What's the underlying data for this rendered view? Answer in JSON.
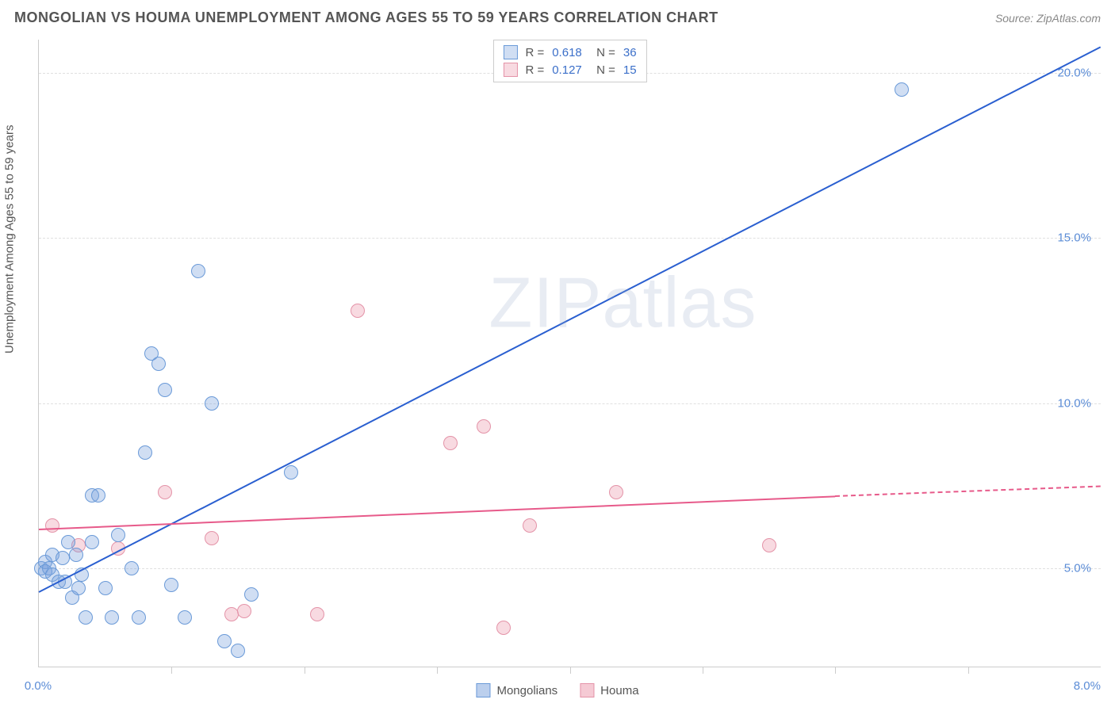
{
  "header": {
    "title": "MONGOLIAN VS HOUMA UNEMPLOYMENT AMONG AGES 55 TO 59 YEARS CORRELATION CHART",
    "source": "Source: ZipAtlas.com"
  },
  "watermark": "ZIPatlas",
  "chart": {
    "type": "scatter",
    "ylabel": "Unemployment Among Ages 55 to 59 years",
    "xlim": [
      0,
      8
    ],
    "ylim": [
      2,
      21
    ],
    "yticks": [
      {
        "v": 5,
        "label": "5.0%"
      },
      {
        "v": 10,
        "label": "10.0%"
      },
      {
        "v": 15,
        "label": "15.0%"
      },
      {
        "v": 20,
        "label": "20.0%"
      }
    ],
    "xticks_major": [
      0,
      1,
      2,
      3,
      4,
      5,
      6,
      7
    ],
    "xtick_labels": [
      {
        "v": 0,
        "label": "0.0%"
      },
      {
        "v": 8,
        "label": "8.0%"
      }
    ],
    "background_color": "#ffffff",
    "grid_color": "#e0e0e0",
    "series": {
      "mongolians": {
        "label": "Mongolians",
        "fill": "rgba(120,160,220,0.35)",
        "stroke": "#6a9ad8",
        "trend_color": "#2a5fd0",
        "marker_radius": 9,
        "r": "0.618",
        "n": "36",
        "trend": {
          "x1": 0,
          "y1": 4.3,
          "x2": 8,
          "y2": 20.8,
          "dash_from_x": 8
        },
        "points": [
          [
            0.02,
            5.0
          ],
          [
            0.05,
            5.2
          ],
          [
            0.05,
            4.9
          ],
          [
            0.08,
            5.0
          ],
          [
            0.1,
            4.8
          ],
          [
            0.1,
            5.4
          ],
          [
            0.15,
            4.6
          ],
          [
            0.18,
            5.3
          ],
          [
            0.2,
            4.6
          ],
          [
            0.22,
            5.8
          ],
          [
            0.25,
            4.1
          ],
          [
            0.28,
            5.4
          ],
          [
            0.3,
            4.4
          ],
          [
            0.32,
            4.8
          ],
          [
            0.35,
            3.5
          ],
          [
            0.4,
            7.2
          ],
          [
            0.4,
            5.8
          ],
          [
            0.45,
            7.2
          ],
          [
            0.5,
            4.4
          ],
          [
            0.55,
            3.5
          ],
          [
            0.6,
            6.0
          ],
          [
            0.7,
            5.0
          ],
          [
            0.75,
            3.5
          ],
          [
            0.8,
            8.5
          ],
          [
            0.85,
            11.5
          ],
          [
            0.9,
            11.2
          ],
          [
            0.95,
            10.4
          ],
          [
            1.0,
            4.5
          ],
          [
            1.1,
            3.5
          ],
          [
            1.2,
            14.0
          ],
          [
            1.3,
            10.0
          ],
          [
            1.4,
            2.8
          ],
          [
            1.5,
            2.5
          ],
          [
            1.6,
            4.2
          ],
          [
            1.9,
            7.9
          ],
          [
            6.5,
            19.5
          ]
        ]
      },
      "houma": {
        "label": "Houma",
        "fill": "rgba(235,150,170,0.35)",
        "stroke": "#e493a8",
        "trend_color": "#e75a8a",
        "marker_radius": 9,
        "r": "0.127",
        "n": "15",
        "trend": {
          "x1": 0,
          "y1": 6.2,
          "x2": 6.0,
          "y2": 7.2,
          "dash_to_x": 8,
          "dash_to_y": 7.5
        },
        "points": [
          [
            0.1,
            6.3
          ],
          [
            0.3,
            5.7
          ],
          [
            0.6,
            5.6
          ],
          [
            0.95,
            7.3
          ],
          [
            1.3,
            5.9
          ],
          [
            1.45,
            3.6
          ],
          [
            1.55,
            3.7
          ],
          [
            2.1,
            3.6
          ],
          [
            2.4,
            12.8
          ],
          [
            3.1,
            8.8
          ],
          [
            3.35,
            9.3
          ],
          [
            3.5,
            3.2
          ],
          [
            3.7,
            6.3
          ],
          [
            4.35,
            7.3
          ],
          [
            5.5,
            5.7
          ]
        ]
      }
    }
  },
  "legend_bottom": [
    {
      "label": "Mongolians",
      "fill": "rgba(120,160,220,0.5)",
      "stroke": "#6a9ad8"
    },
    {
      "label": "Houma",
      "fill": "rgba(235,150,170,0.5)",
      "stroke": "#e493a8"
    }
  ]
}
